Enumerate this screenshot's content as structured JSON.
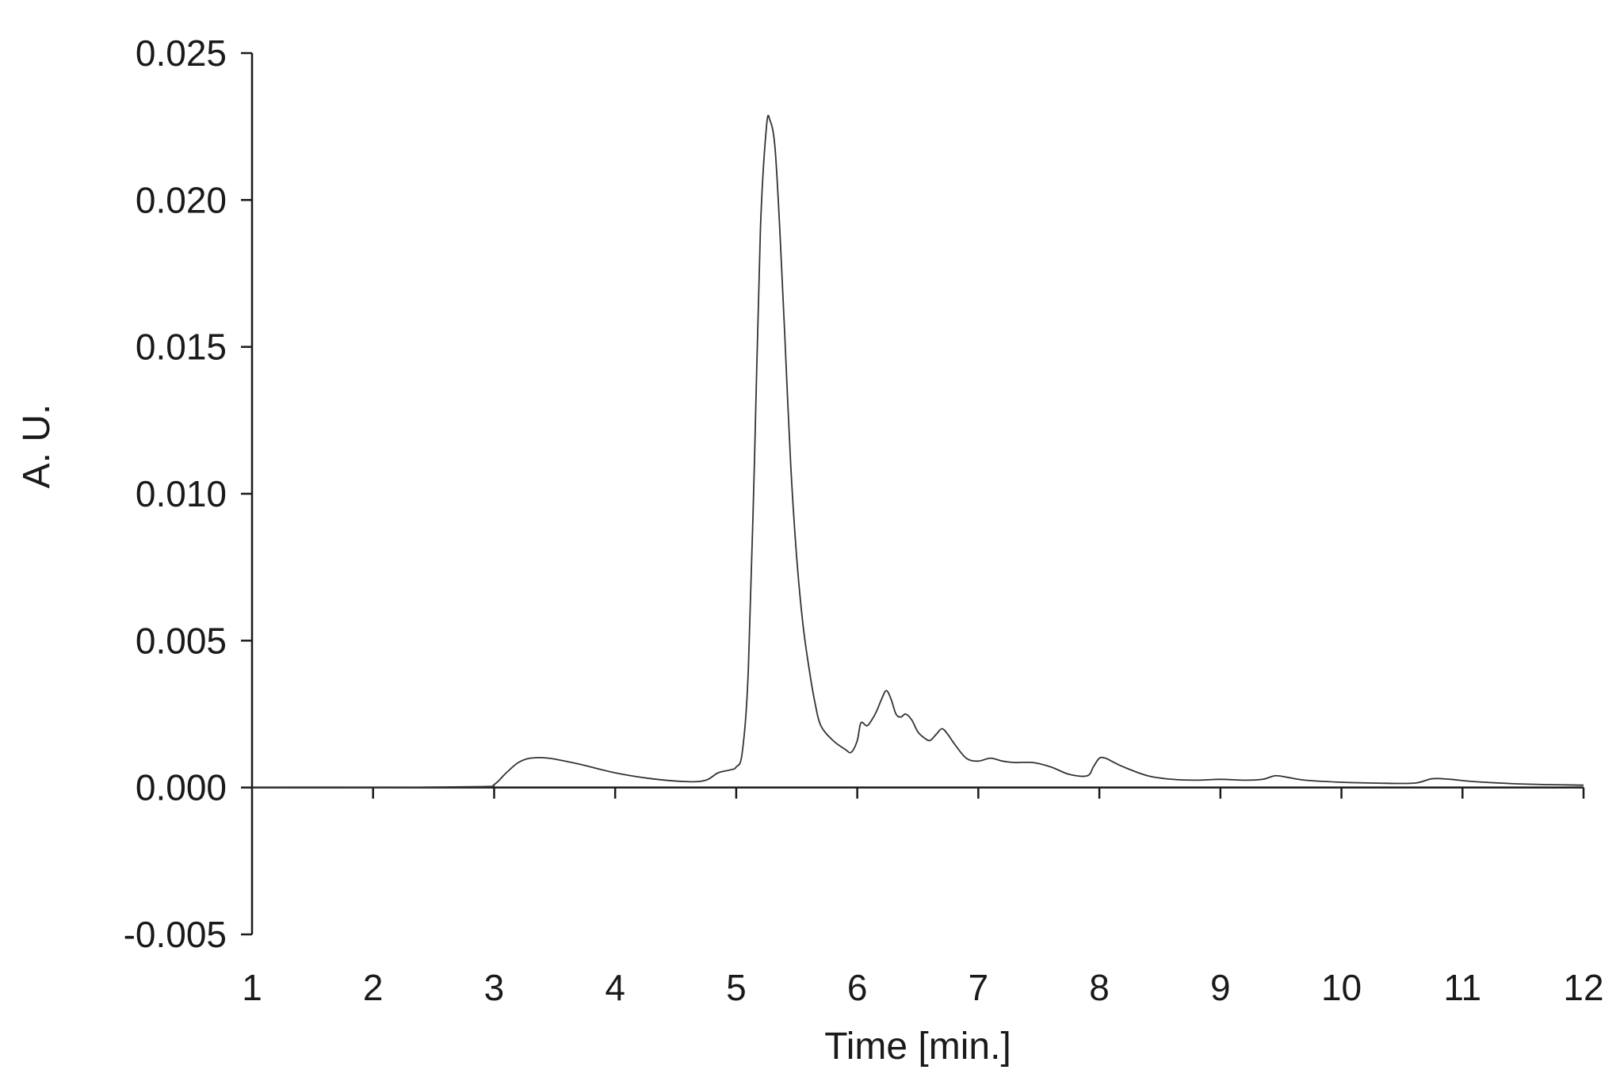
{
  "chart_data": {
    "type": "line",
    "title": "",
    "xlabel": "Time [min.]",
    "ylabel": "A. U.",
    "xlim": [
      1,
      12
    ],
    "ylim": [
      -0.005,
      0.025
    ],
    "x_ticks": [
      "1",
      "2",
      "3",
      "4",
      "5",
      "6",
      "7",
      "8",
      "9",
      "10",
      "11",
      "12"
    ],
    "y_ticks": [
      "0.025",
      "0.020",
      "0.015",
      "0.010",
      "0.005",
      "0.000",
      "-0.005"
    ],
    "y_tick_values": [
      0.025,
      0.02,
      0.015,
      0.01,
      0.005,
      0.0,
      -0.005
    ],
    "grid": false,
    "legend": "none",
    "line_color": "#333333",
    "series": [
      {
        "x": [
          1.0,
          2.0,
          2.9,
          3.0,
          3.1,
          3.2,
          3.3,
          3.45,
          3.7,
          4.0,
          4.3,
          4.6,
          4.75,
          4.85,
          4.95,
          5.0,
          5.05,
          5.1,
          5.15,
          5.2,
          5.25,
          5.28,
          5.32,
          5.36,
          5.4,
          5.45,
          5.5,
          5.55,
          5.6,
          5.65,
          5.7,
          5.8,
          5.9,
          5.95,
          6.0,
          6.03,
          6.08,
          6.12,
          6.16,
          6.2,
          6.24,
          6.28,
          6.32,
          6.36,
          6.4,
          6.45,
          6.5,
          6.55,
          6.6,
          6.65,
          6.7,
          6.75,
          6.8,
          6.9,
          7.0,
          7.1,
          7.2,
          7.3,
          7.45,
          7.6,
          7.75,
          7.9,
          7.95,
          8.0,
          8.05,
          8.1,
          8.2,
          8.4,
          8.6,
          8.8,
          9.0,
          9.2,
          9.35,
          9.45,
          9.55,
          9.7,
          10.0,
          10.3,
          10.6,
          10.75,
          10.9,
          11.1,
          11.5,
          12.0
        ],
        "y": [
          0.0,
          0.0,
          3e-05,
          0.0001,
          0.0005,
          0.00085,
          0.001,
          0.001,
          0.0008,
          0.0005,
          0.0003,
          0.0002,
          0.00025,
          0.0005,
          0.0006,
          0.0007,
          0.0012,
          0.004,
          0.011,
          0.019,
          0.0225,
          0.0227,
          0.0218,
          0.019,
          0.0155,
          0.011,
          0.0078,
          0.0056,
          0.0041,
          0.0029,
          0.0021,
          0.0016,
          0.0013,
          0.0012,
          0.0016,
          0.0022,
          0.0021,
          0.0023,
          0.0026,
          0.003,
          0.0033,
          0.003,
          0.0025,
          0.0024,
          0.0025,
          0.0023,
          0.0019,
          0.0017,
          0.0016,
          0.0018,
          0.002,
          0.0018,
          0.0015,
          0.001,
          0.0009,
          0.001,
          0.0009,
          0.00085,
          0.00085,
          0.0007,
          0.00045,
          0.0004,
          0.0007,
          0.001,
          0.001,
          0.0009,
          0.0007,
          0.0004,
          0.00028,
          0.00025,
          0.00028,
          0.00025,
          0.00028,
          0.0004,
          0.00035,
          0.00025,
          0.00018,
          0.00015,
          0.00015,
          0.0003,
          0.00028,
          0.0002,
          0.00012,
          8e-05
        ]
      }
    ]
  }
}
